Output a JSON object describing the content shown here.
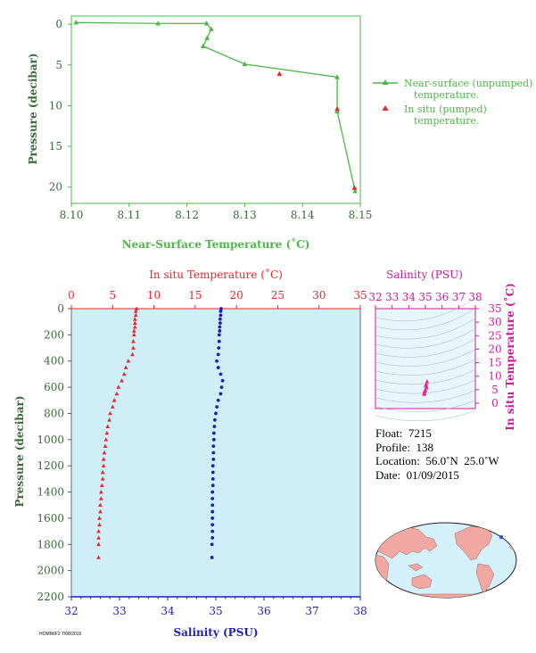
{
  "chart_data": [
    {
      "type": "line",
      "xlabel": "Near-Surface Temperature (˚C)",
      "ylabel": "Pressure (decibar)",
      "xlim": [
        8.1,
        8.15
      ],
      "ylim": [
        22,
        -1
      ],
      "xticks": [
        "8.10",
        "8.11",
        "8.12",
        "8.13",
        "8.14",
        "8.15"
      ],
      "yticks": [
        "0",
        "5",
        "10",
        "15",
        "20"
      ],
      "legend_position": "right",
      "series": [
        {
          "name": "Near-surface (unpumped) temperature.",
          "color": "#4db848",
          "marker": "triangle",
          "x": [
            8.1008,
            8.115,
            8.1234,
            8.1242,
            8.1235,
            8.1228,
            8.13,
            8.146,
            8.146,
            8.1491
          ],
          "y": [
            -0.2,
            -0.1,
            -0.1,
            0.6,
            1.7,
            2.7,
            4.9,
            6.5,
            10.7,
            20.5
          ]
        },
        {
          "name": "In situ (pumped) temperature.",
          "color": "#e8262b",
          "marker": "triangle",
          "x": [
            8.136,
            8.146,
            8.149
          ],
          "y": [
            6.1,
            10.4,
            20.1
          ]
        }
      ]
    },
    {
      "type": "scatter",
      "ylabel": "Pressure (decibar)",
      "ylim": [
        2200,
        0
      ],
      "yticks": [
        "0",
        "200",
        "400",
        "600",
        "800",
        "1000",
        "1200",
        "1400",
        "1600",
        "1800",
        "2000",
        "2200"
      ],
      "top_axis": {
        "label": "In situ Temperature (˚C)",
        "range": [
          0,
          35
        ],
        "ticks": [
          "0",
          "5",
          "10",
          "15",
          "20",
          "25",
          "30",
          "35"
        ],
        "color": "#e8262b"
      },
      "bottom_axis": {
        "label": "Salinity (PSU)",
        "range": [
          32,
          38
        ],
        "ticks": [
          "32",
          "33",
          "34",
          "35",
          "36",
          "37",
          "38"
        ],
        "color": "#1f1fb0"
      },
      "background": "#cfeef8",
      "series": [
        {
          "name": "In situ Temperature (˚C)",
          "color": "#e8262b",
          "marker": "triangle",
          "x": [
            7.9,
            7.8,
            7.8,
            7.7,
            7.7,
            7.7,
            7.6,
            7.6,
            7.5,
            7.5,
            7.4,
            6.9,
            6.6,
            6.4,
            6.1,
            5.7,
            5.5,
            5.2,
            5.0,
            4.7,
            4.6,
            4.4,
            4.3,
            4.2,
            4.1,
            4.0,
            3.9,
            3.9,
            3.8,
            3.8,
            3.7,
            3.6,
            3.6,
            3.5,
            3.5,
            3.4,
            3.4,
            3.3,
            3.3,
            3.3,
            3.3
          ],
          "y": [
            0,
            20,
            50,
            80,
            110,
            140,
            170,
            200,
            250,
            300,
            350,
            400,
            450,
            500,
            550,
            600,
            650,
            700,
            750,
            800,
            850,
            900,
            950,
            1000,
            1050,
            1100,
            1150,
            1200,
            1250,
            1300,
            1350,
            1400,
            1450,
            1500,
            1550,
            1600,
            1650,
            1700,
            1750,
            1800,
            1900
          ]
        },
        {
          "name": "Salinity (PSU)",
          "color": "#1f1fb0",
          "marker": "dot",
          "x": [
            35.11,
            35.1,
            35.1,
            35.09,
            35.09,
            35.08,
            35.08,
            35.07,
            35.07,
            35.06,
            35.05,
            35.02,
            35.05,
            35.1,
            35.14,
            35.12,
            35.1,
            35.05,
            35.02,
            35.0,
            34.98,
            34.97,
            34.96,
            34.96,
            34.95,
            34.95,
            34.95,
            34.94,
            34.94,
            34.94,
            34.94,
            34.93,
            34.93,
            34.93,
            34.93,
            34.93,
            34.93,
            34.93,
            34.93,
            34.92,
            34.92
          ],
          "y": [
            0,
            20,
            50,
            80,
            110,
            140,
            170,
            200,
            250,
            300,
            350,
            400,
            450,
            500,
            550,
            600,
            650,
            700,
            750,
            800,
            850,
            900,
            950,
            1000,
            1050,
            1100,
            1150,
            1200,
            1250,
            1300,
            1350,
            1400,
            1450,
            1500,
            1550,
            1600,
            1650,
            1700,
            1750,
            1800,
            1900
          ]
        }
      ]
    },
    {
      "type": "scatter",
      "xlabel": "Salinity (PSU)",
      "ylabel": "In situ Temperature (˚C)",
      "xlim": [
        32,
        38
      ],
      "ylim": [
        -2,
        35
      ],
      "xticks": [
        "32",
        "33",
        "34",
        "35",
        "36",
        "37",
        "38"
      ],
      "yticks": [
        "0",
        "5",
        "10",
        "15",
        "20",
        "25",
        "30",
        "35"
      ],
      "color": "#cc1c9e",
      "marker_color": "#e8268c",
      "points": [
        [
          35.1,
          8.0
        ],
        [
          35.05,
          7.0
        ],
        [
          35.02,
          6.4
        ],
        [
          35.08,
          5.8
        ],
        [
          35.0,
          5.0
        ],
        [
          34.96,
          4.5
        ],
        [
          34.94,
          4.0
        ],
        [
          34.93,
          3.6
        ],
        [
          34.92,
          3.3
        ]
      ]
    }
  ],
  "info": {
    "float": "Float:  7215",
    "profile": "Profile:  138",
    "location": "Location:  56.0˚N  25.0˚W",
    "date": "Date:  01/09/2015"
  },
  "map": {
    "marker_lat": 56.0,
    "marker_lon": -25.0,
    "ocean_color": "#d4f0fa",
    "land_color": "#f2a8a2",
    "marker_color": "#1f5fd6"
  },
  "footer": "HOMIWF2 7/08/2015"
}
